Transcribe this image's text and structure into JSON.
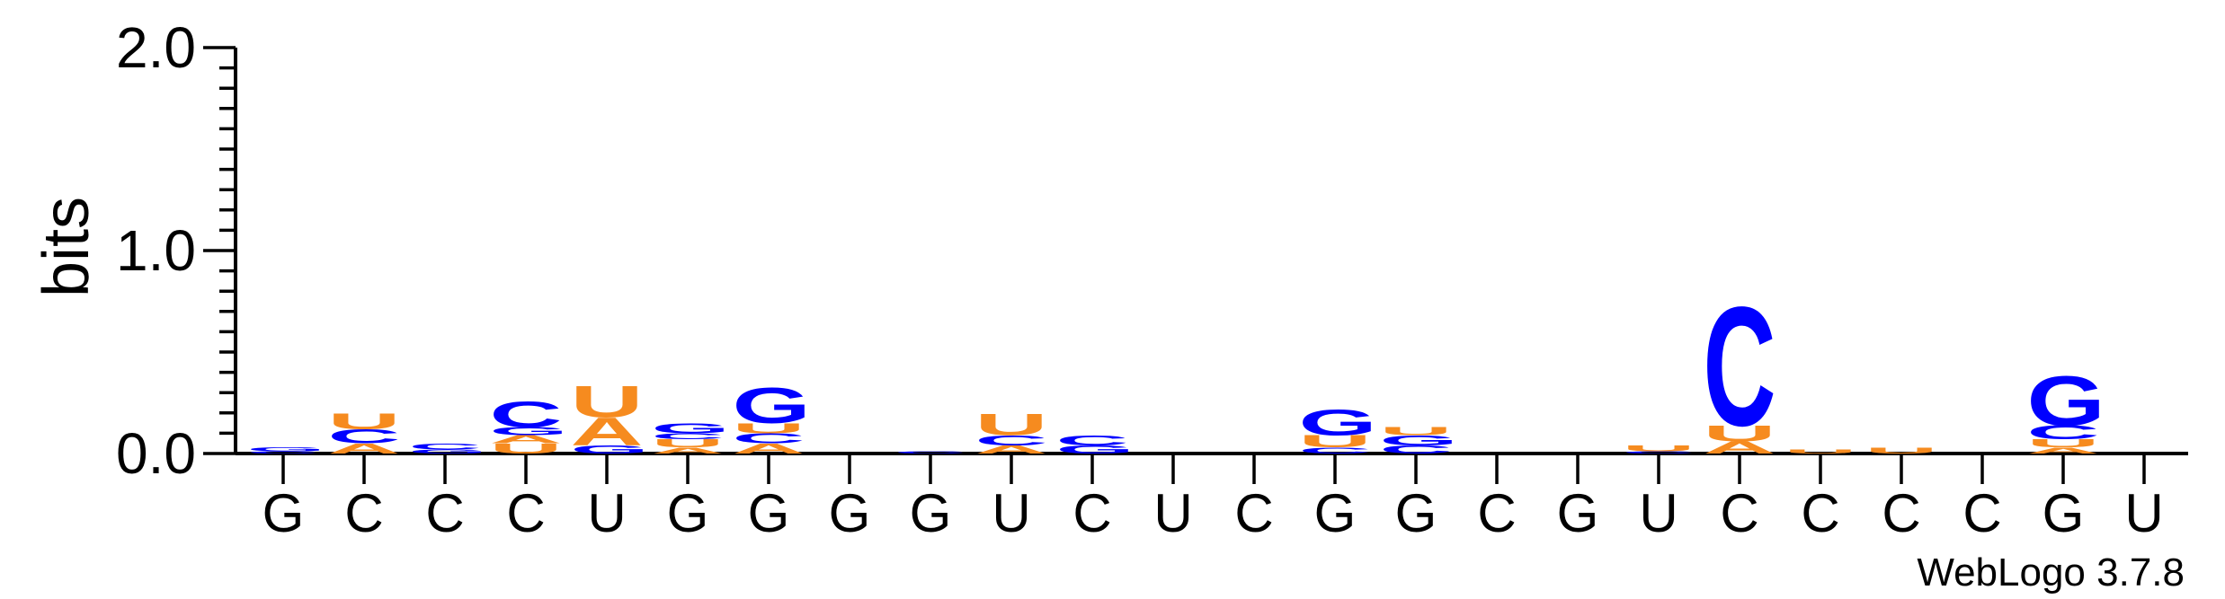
{
  "chart_data": {
    "type": "sequence-logo",
    "ylabel": "bits",
    "ylim": [
      0,
      2.0
    ],
    "y_ticks": [
      "0.0",
      "1.0",
      "2.0"
    ],
    "x_labels": [
      "G",
      "C",
      "C",
      "C",
      "U",
      "G",
      "G",
      "G",
      "G",
      "U",
      "C",
      "U",
      "C",
      "G",
      "G",
      "C",
      "G",
      "U",
      "C",
      "C",
      "C",
      "C",
      "G",
      "U"
    ],
    "footer": "WebLogo 3.7.8",
    "colors": {
      "A": "#f68b1f",
      "U": "#f68b1f",
      "C": "#0000ff",
      "G": "#0000ff"
    },
    "positions": [
      [
        {
          "b": "C",
          "h": 0.01
        },
        {
          "b": "G",
          "h": 0.02
        }
      ],
      [
        {
          "b": "A",
          "h": 0.05
        },
        {
          "b": "C",
          "h": 0.07
        },
        {
          "b": "U",
          "h": 0.08
        }
      ],
      [
        {
          "b": "G",
          "h": 0.02
        },
        {
          "b": "C",
          "h": 0.03
        }
      ],
      [
        {
          "b": "U",
          "h": 0.05
        },
        {
          "b": "A",
          "h": 0.04
        },
        {
          "b": "G",
          "h": 0.04
        },
        {
          "b": "C",
          "h": 0.13
        }
      ],
      [
        {
          "b": "G",
          "h": 0.04
        },
        {
          "b": "A",
          "h": 0.14
        },
        {
          "b": "U",
          "h": 0.16
        }
      ],
      [
        {
          "b": "A",
          "h": 0.03
        },
        {
          "b": "U",
          "h": 0.04
        },
        {
          "b": "C",
          "h": 0.03
        },
        {
          "b": "G",
          "h": 0.05
        }
      ],
      [
        {
          "b": "A",
          "h": 0.05
        },
        {
          "b": "C",
          "h": 0.05
        },
        {
          "b": "U",
          "h": 0.05
        },
        {
          "b": "G",
          "h": 0.18
        }
      ],
      [],
      [
        {
          "b": "C",
          "h": 0.01
        }
      ],
      [
        {
          "b": "A",
          "h": 0.04
        },
        {
          "b": "C",
          "h": 0.05
        },
        {
          "b": "U",
          "h": 0.11
        }
      ],
      [
        {
          "b": "G",
          "h": 0.04
        },
        {
          "b": "C",
          "h": 0.05
        }
      ],
      [],
      [],
      [
        {
          "b": "C",
          "h": 0.03
        },
        {
          "b": "U",
          "h": 0.06
        },
        {
          "b": "G",
          "h": 0.13
        }
      ],
      [
        {
          "b": "C",
          "h": 0.04
        },
        {
          "b": "G",
          "h": 0.05
        },
        {
          "b": "U",
          "h": 0.04
        }
      ],
      [],
      [],
      [
        {
          "b": "C",
          "h": 0.01
        },
        {
          "b": "U",
          "h": 0.03
        }
      ],
      [
        {
          "b": "A",
          "h": 0.06
        },
        {
          "b": "U",
          "h": 0.08
        },
        {
          "b": "C",
          "h": 0.6
        }
      ],
      [
        {
          "b": "U",
          "h": 0.02
        }
      ],
      [
        {
          "b": "U",
          "h": 0.03
        }
      ],
      [],
      [
        {
          "b": "A",
          "h": 0.03
        },
        {
          "b": "U",
          "h": 0.04
        },
        {
          "b": "C",
          "h": 0.07
        },
        {
          "b": "G",
          "h": 0.25
        }
      ],
      []
    ]
  }
}
